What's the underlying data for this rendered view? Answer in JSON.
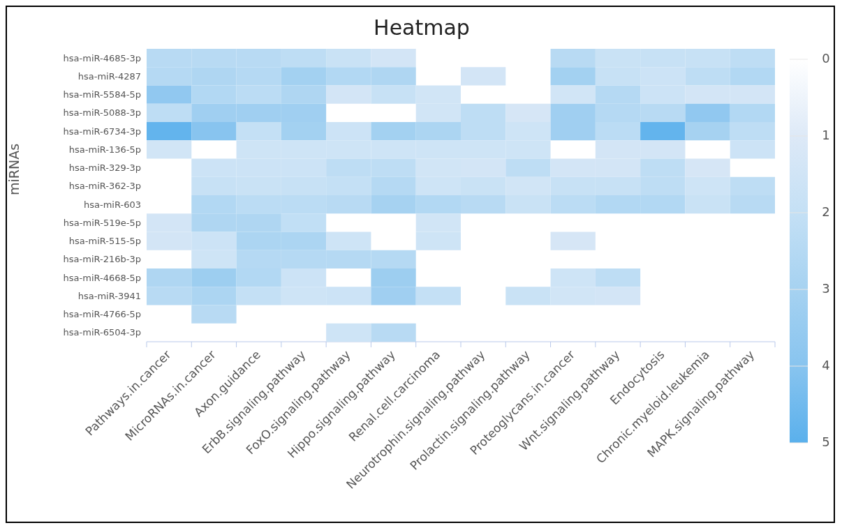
{
  "chart_data": {
    "type": "heatmap",
    "title": "Heatmap",
    "ylabel": "miRNAs",
    "categories": [
      "Pathways.in.cancer",
      "MicroRNAs.in.cancer",
      "Axon.guidance",
      "ErbB.signaling.pathway",
      "FoxO.signaling.pathway",
      "Hippo.signaling.pathway",
      "Renal.cell.carcinoma",
      "Neurotrophin.signaling.pathway",
      "Prolactin.signaling.pathway",
      "Proteoglycans.in.cancer",
      "Wnt.signaling.pathway",
      "Endocytosis",
      "Chronic.myeloid.leukemia",
      "MAPK.signaling.pathway"
    ],
    "y_categories": [
      "hsa-miR-4685-3p",
      "hsa-miR-4287",
      "hsa-miR-5584-5p",
      "hsa-miR-5088-3p",
      "hsa-miR-6734-3p",
      "hsa-miR-136-5p",
      "hsa-miR-329-3p",
      "hsa-miR-362-3p",
      "hsa-miR-603",
      "hsa-miR-519e-5p",
      "hsa-miR-515-5p",
      "hsa-miR-216b-3p",
      "hsa-miR-4668-5p",
      "hsa-miR-3941",
      "hsa-miR-4766-5p",
      "hsa-miR-6504-3p"
    ],
    "cells": [
      [
        2.4,
        2.4,
        2.4,
        2.2,
        1.8,
        1.4,
        null,
        null,
        null,
        2.4,
        1.8,
        1.9,
        1.9,
        2.2
      ],
      [
        2.5,
        2.7,
        2.5,
        3.1,
        2.6,
        2.7,
        null,
        1.4,
        null,
        3.1,
        1.9,
        1.7,
        2.2,
        2.6
      ],
      [
        3.7,
        2.6,
        2.3,
        2.7,
        1.4,
        1.9,
        1.5,
        null,
        null,
        1.5,
        2.5,
        1.7,
        1.4,
        1.4
      ],
      [
        2.2,
        3.2,
        3.2,
        3.2,
        null,
        null,
        1.5,
        2.2,
        1.3,
        3.2,
        2.5,
        2.4,
        3.7,
        2.6
      ],
      [
        4.8,
        4.0,
        2.0,
        3.1,
        1.7,
        3.1,
        2.8,
        2.2,
        1.6,
        3.2,
        2.3,
        4.8,
        3.0,
        2.2
      ],
      [
        1.5,
        null,
        1.6,
        1.6,
        1.6,
        1.6,
        1.6,
        1.6,
        1.6,
        null,
        1.4,
        1.4,
        null,
        1.7
      ],
      [
        null,
        1.7,
        1.7,
        1.7,
        2.2,
        2.2,
        1.5,
        1.4,
        2.2,
        1.4,
        1.4,
        2.2,
        1.3,
        null
      ],
      [
        null,
        1.9,
        1.8,
        1.9,
        2.0,
        2.5,
        1.6,
        1.8,
        1.5,
        1.9,
        1.9,
        2.2,
        1.6,
        2.2
      ],
      [
        null,
        2.6,
        2.3,
        2.3,
        2.4,
        3.0,
        2.6,
        2.4,
        1.8,
        2.3,
        2.6,
        2.6,
        1.8,
        2.4
      ],
      [
        1.4,
        2.7,
        2.7,
        2.1,
        null,
        null,
        1.5,
        null,
        null,
        null,
        null,
        null,
        null,
        null
      ],
      [
        1.4,
        1.7,
        2.8,
        2.8,
        1.6,
        null,
        1.6,
        null,
        null,
        1.3,
        null,
        null,
        null,
        null
      ],
      [
        null,
        1.6,
        2.5,
        2.5,
        2.5,
        2.5,
        null,
        null,
        null,
        null,
        null,
        null,
        null,
        null
      ],
      [
        2.7,
        3.3,
        2.6,
        1.7,
        null,
        3.3,
        null,
        null,
        null,
        1.6,
        2.2,
        null,
        null,
        null
      ],
      [
        2.4,
        2.8,
        2.0,
        1.6,
        1.7,
        3.2,
        2.0,
        null,
        1.8,
        1.5,
        1.4,
        null,
        null,
        null
      ],
      [
        null,
        2.4,
        null,
        null,
        null,
        null,
        null,
        null,
        null,
        null,
        null,
        null,
        null,
        null
      ],
      [
        null,
        null,
        null,
        null,
        1.6,
        2.4,
        null,
        null,
        null,
        null,
        null,
        null,
        null,
        null
      ]
    ],
    "clim": [
      0,
      5
    ],
    "cticks": [
      0,
      1,
      2,
      3,
      4,
      5
    ]
  }
}
